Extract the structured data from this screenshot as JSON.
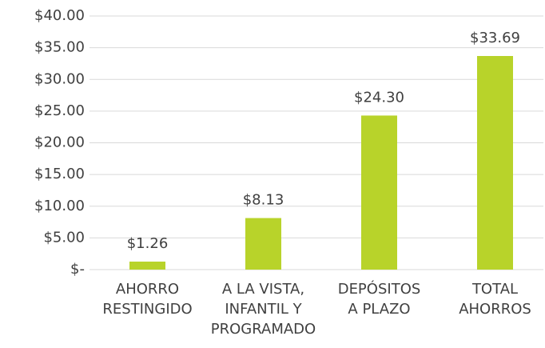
{
  "chart_data": {
    "type": "bar",
    "categories": [
      [
        "AHORRO",
        "RESTINGIDO"
      ],
      [
        "A LA VISTA,",
        "INFANTIL Y",
        "PROGRAMADO"
      ],
      [
        "DEPÓSITOS",
        "A PLAZO"
      ],
      [
        "TOTAL",
        "AHORROS"
      ]
    ],
    "values": [
      1.26,
      8.13,
      24.3,
      33.69
    ],
    "value_labels": [
      "$1.26",
      "$8.13",
      "$24.30",
      "$33.69"
    ],
    "color": "#b8d32a",
    "ylim": [
      0,
      40
    ],
    "yticks": [
      {
        "value": 0,
        "label": "$-"
      },
      {
        "value": 5,
        "label": "$5.00"
      },
      {
        "value": 10,
        "label": "$10.00"
      },
      {
        "value": 15,
        "label": "$15.00"
      },
      {
        "value": 20,
        "label": "$20.00"
      },
      {
        "value": 25,
        "label": "$25.00"
      },
      {
        "value": 30,
        "label": "$30.00"
      },
      {
        "value": 35,
        "label": "$35.00"
      },
      {
        "value": 40,
        "label": "$40.00"
      }
    ],
    "grid": true
  }
}
